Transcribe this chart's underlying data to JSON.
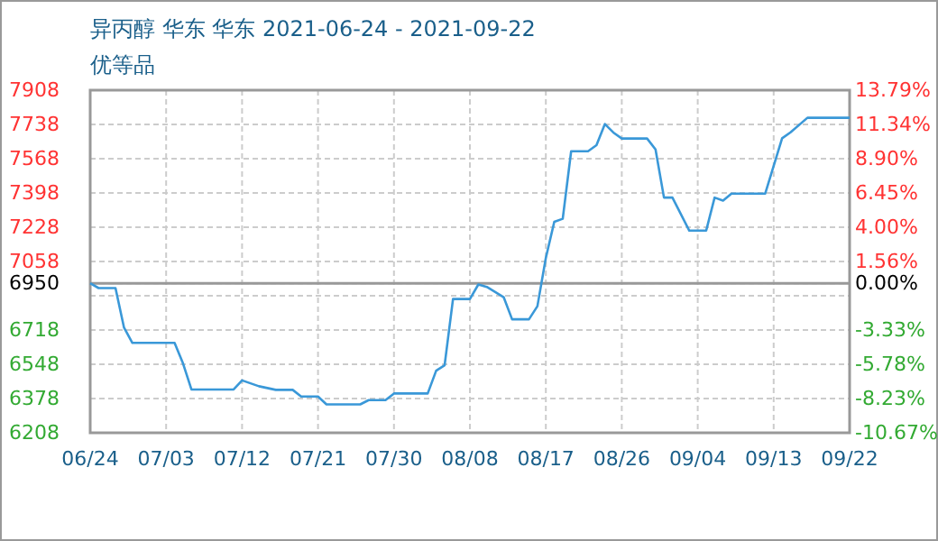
{
  "chart_data": {
    "type": "line",
    "title": "异丙醇 华东 华东 2021-06-24 - 2021-09-22",
    "subtitle": "优等品",
    "x": [
      "2021-06-24",
      "2021-06-25",
      "2021-06-27",
      "2021-06-28",
      "2021-06-29",
      "2021-07-04",
      "2021-07-05",
      "2021-07-06",
      "2021-07-11",
      "2021-07-12",
      "2021-07-14",
      "2021-07-16",
      "2021-07-18",
      "2021-07-19",
      "2021-07-21",
      "2021-07-22",
      "2021-07-26",
      "2021-07-27",
      "2021-07-29",
      "2021-07-30",
      "2021-08-03",
      "2021-08-04",
      "2021-08-05",
      "2021-08-06",
      "2021-08-08",
      "2021-08-09",
      "2021-08-10",
      "2021-08-12",
      "2021-08-13",
      "2021-08-15",
      "2021-08-16",
      "2021-08-17",
      "2021-08-18",
      "2021-08-19",
      "2021-08-20",
      "2021-08-22",
      "2021-08-23",
      "2021-08-24",
      "2021-08-25",
      "2021-08-26",
      "2021-08-29",
      "2021-08-30",
      "2021-08-31",
      "2021-09-01",
      "2021-09-03",
      "2021-09-05",
      "2021-09-06",
      "2021-09-07",
      "2021-09-08",
      "2021-09-12",
      "2021-09-14",
      "2021-09-15",
      "2021-09-17",
      "2021-09-22"
    ],
    "series": [
      {
        "color": "#3a98d8",
        "values": [
          6950,
          6926,
          6926,
          6731,
          6654,
          6654,
          6552,
          6423,
          6423,
          6468,
          6439,
          6421,
          6421,
          6388,
          6388,
          6349,
          6349,
          6370,
          6370,
          6403,
          6403,
          6516,
          6543,
          6872,
          6872,
          6944,
          6932,
          6881,
          6771,
          6771,
          6836,
          7076,
          7255,
          7270,
          7605,
          7605,
          7635,
          7740,
          7698,
          7668,
          7668,
          7614,
          7375,
          7375,
          7211,
          7211,
          7375,
          7360,
          7395,
          7395,
          7669,
          7699,
          7771,
          7771
        ]
      }
    ],
    "xlim": [
      "2021-06-24",
      "2021-09-22"
    ],
    "xticks": [
      {
        "value": "2021-06-24",
        "label": "06/24"
      },
      {
        "value": "2021-07-03",
        "label": "07/03"
      },
      {
        "value": "2021-07-12",
        "label": "07/12"
      },
      {
        "value": "2021-07-21",
        "label": "07/21"
      },
      {
        "value": "2021-07-30",
        "label": "07/30"
      },
      {
        "value": "2021-08-08",
        "label": "08/08"
      },
      {
        "value": "2021-08-17",
        "label": "08/17"
      },
      {
        "value": "2021-08-26",
        "label": "08/26"
      },
      {
        "value": "2021-09-04",
        "label": "09/04"
      },
      {
        "value": "2021-09-13",
        "label": "09/13"
      },
      {
        "value": "2021-09-22",
        "label": "09/22"
      }
    ],
    "ylim": [
      6208,
      7908
    ],
    "yticks": [
      6208,
      6378,
      6548,
      6718,
      {
        "value": 6888,
        "label": null
      },
      6950,
      7058,
      7228,
      7398,
      7568,
      7738,
      7908
    ],
    "y2lim": [
      -10.67,
      13.79
    ],
    "y2ticks": [
      {
        "value": -10.67,
        "label": "-10.67%"
      },
      {
        "value": -8.23,
        "label": "-8.23%"
      },
      {
        "value": -5.78,
        "label": "-5.78%"
      },
      {
        "value": -3.33,
        "label": "-3.33%"
      },
      {
        "value": 0,
        "label": "0.00%"
      },
      {
        "value": 1.56,
        "label": "1.56%"
      },
      {
        "value": 4.0,
        "label": "4.00%"
      },
      {
        "value": 6.45,
        "label": "6.45%"
      },
      {
        "value": 8.9,
        "label": "8.90%"
      },
      {
        "value": 11.34,
        "label": "11.34%"
      },
      {
        "value": 13.79,
        "label": "13.79%"
      }
    ],
    "ref_lines": [
      {
        "axis": "y",
        "value": 6950,
        "color": "#999999"
      }
    ],
    "grid": true,
    "marker": "none",
    "line_style": "solid"
  }
}
